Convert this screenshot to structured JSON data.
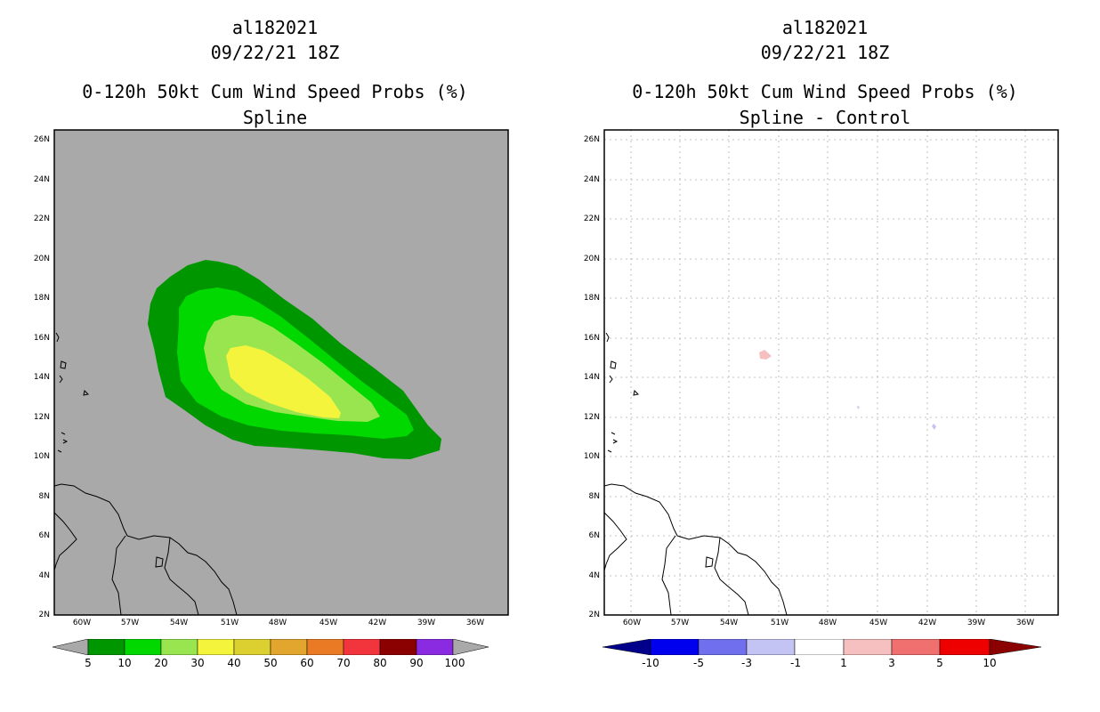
{
  "left_panel": {
    "storm_id": "al182021",
    "datetime": "09/22/21 18Z",
    "product": "0-120h 50kt Cum Wind Speed Probs (%)",
    "method": "Spline",
    "background_color": "#a9a9a9",
    "legend_labels": [
      "5",
      "10",
      "20",
      "30",
      "40",
      "50",
      "60",
      "70",
      "80",
      "90",
      "100"
    ],
    "legend_colors": [
      "#009600",
      "#00d800",
      "#99e550",
      "#f4f43c",
      "#dbd030",
      "#e2a62e",
      "#eb7a25",
      "#f2353c",
      "#8b0000",
      "#8a2be2"
    ]
  },
  "right_panel": {
    "storm_id": "al182021",
    "datetime": "09/22/21 18Z",
    "product": "0-120h 50kt Cum Wind Speed Probs (%)",
    "method": "Spline - Control",
    "background_color": "#ffffff",
    "legend_labels": [
      "-10",
      "-5",
      "-3",
      "-1",
      "1",
      "3",
      "5",
      "10"
    ],
    "legend_colors": [
      "#00008b",
      "#0000ee",
      "#7070ee",
      "#c4c4f4",
      "#ffffff",
      "#f7c0c0",
      "#f07070",
      "#ee0000",
      "#8b0000"
    ]
  },
  "lat_labels": [
    "26N",
    "24N",
    "22N",
    "20N",
    "18N",
    "16N",
    "14N",
    "12N",
    "10N",
    "8N",
    "6N",
    "4N",
    "2N"
  ],
  "lon_labels": [
    "60W",
    "57W",
    "54W",
    "51W",
    "48W",
    "45W",
    "42W",
    "39W",
    "36W"
  ]
}
